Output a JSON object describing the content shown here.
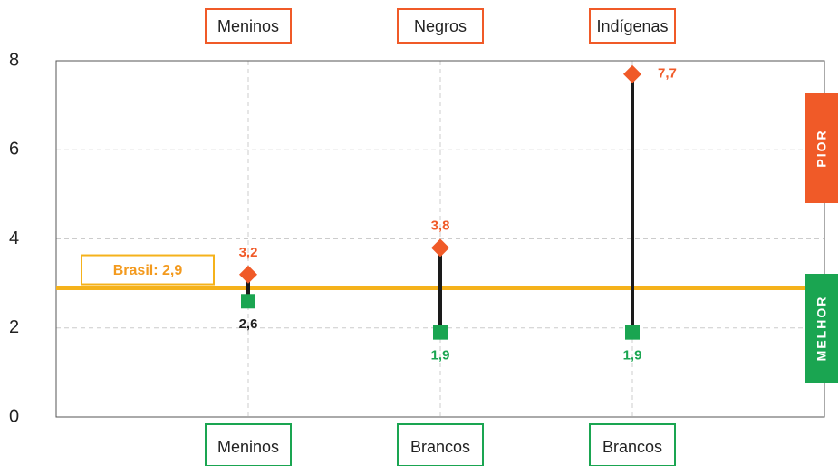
{
  "chart_data": {
    "type": "dumbbell",
    "x": [
      1,
      2,
      3
    ],
    "xlim": [
      0,
      4
    ],
    "ylim": [
      0,
      8
    ],
    "yticks": [
      0,
      2,
      4,
      6,
      8
    ],
    "grid": true,
    "connector_color": "#1a1a1a",
    "series": [
      {
        "name": "PIOR",
        "color": "#f05a28",
        "marker": "diamond",
        "labels": [
          "Meninos",
          "Negros",
          "Indígenas"
        ],
        "values": [
          3.2,
          3.8,
          7.7
        ],
        "value_labels": [
          "3,2",
          "3,8",
          "7,7"
        ]
      },
      {
        "name": "MELHOR",
        "color": "#1aa551",
        "marker": "square",
        "labels": [
          "Meninos",
          "Brancos",
          "Brancos"
        ],
        "values": [
          2.6,
          1.9,
          1.9
        ],
        "value_labels": [
          "2,6",
          "1,9",
          "1,9"
        ]
      }
    ],
    "reference": {
      "label": "Brasil: 2,9",
      "value": 2.9,
      "color": "#f5b21b",
      "text_color": "#f39a1e"
    }
  }
}
